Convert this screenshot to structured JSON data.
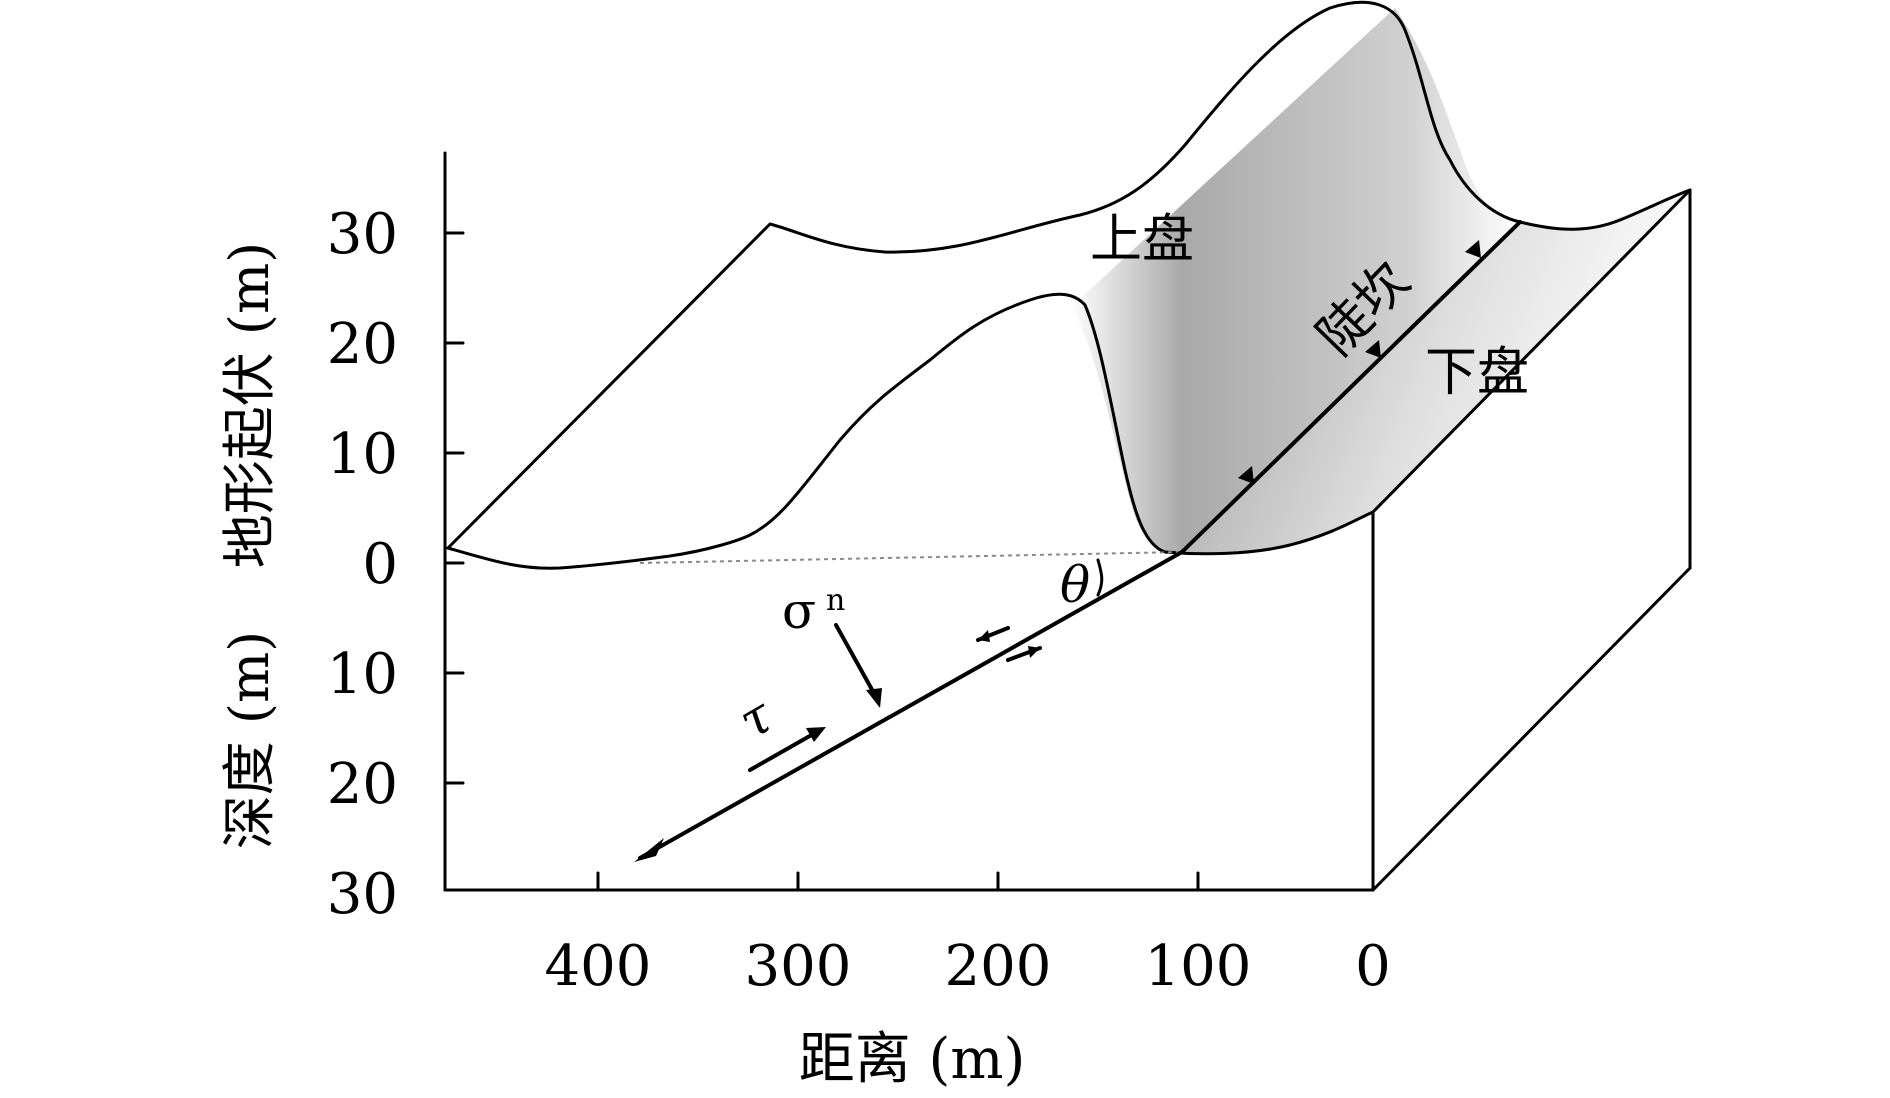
{
  "axes": {
    "y_label_top": "地形起伏 (m)",
    "y_label_bottom": "深度 (m)",
    "x_label": "距离 (m)",
    "y_ticks": [
      "30",
      "20",
      "10",
      "0",
      "10",
      "20",
      "30"
    ],
    "x_ticks": [
      "400",
      "300",
      "200",
      "100",
      "0"
    ]
  },
  "labels": {
    "hanging_wall": "上盘",
    "scarp": "陡坎",
    "footwall": "下盘",
    "theta": "θ",
    "sigma": "σ",
    "sigma_sub": "n",
    "tau": "τ"
  },
  "colors": {
    "scarp_dark": "#8f8f8f",
    "scarp_light": "#ffffff"
  }
}
